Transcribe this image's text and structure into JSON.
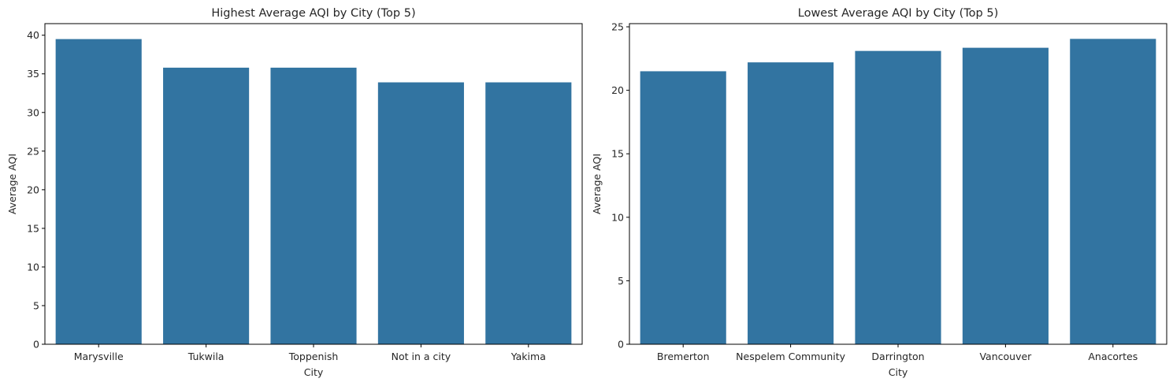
{
  "chart_data": [
    {
      "type": "bar",
      "title": "Highest Average AQI by City (Top 5)",
      "xlabel": "City",
      "ylabel": "Average AQI",
      "categories": [
        "Marysville",
        "Tukwila",
        "Toppenish",
        "Not in a city",
        "Yakima"
      ],
      "values": [
        39.5,
        35.8,
        35.8,
        33.9,
        33.9
      ],
      "ylim": [
        0,
        41.5
      ],
      "yticks": [
        0,
        5,
        10,
        15,
        20,
        25,
        30,
        35,
        40
      ],
      "grid": false,
      "bar_color": "#3274a1"
    },
    {
      "type": "bar",
      "title": "Lowest Average AQI by City (Top 5)",
      "xlabel": "City",
      "ylabel": "Average AQI",
      "categories": [
        "Bremerton",
        "Nespelem Community",
        "Darrington",
        "Vancouver",
        "Anacortes"
      ],
      "values": [
        21.5,
        22.2,
        23.1,
        23.35,
        24.05
      ],
      "ylim": [
        0,
        25.25
      ],
      "yticks": [
        0,
        5,
        10,
        15,
        20,
        25
      ],
      "grid": false,
      "bar_color": "#3274a1"
    }
  ]
}
